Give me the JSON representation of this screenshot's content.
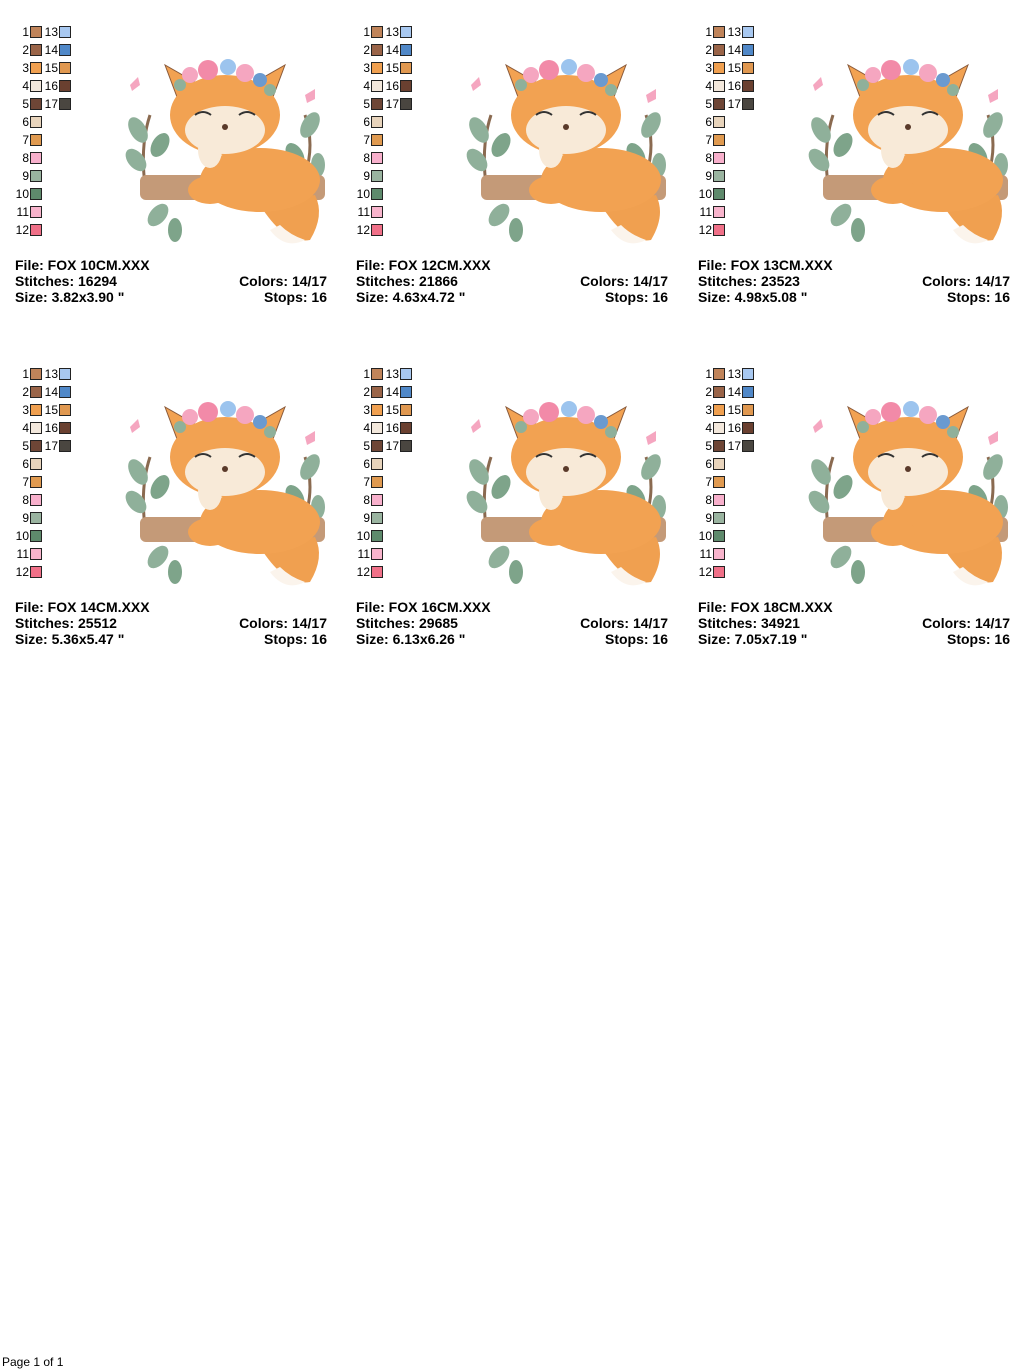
{
  "palette": {
    "numbers": [
      "1",
      "2",
      "3",
      "4",
      "5",
      "6",
      "7",
      "8",
      "9",
      "10",
      "11",
      "12",
      "13",
      "14",
      "15",
      "16",
      "17"
    ],
    "colors": [
      "#c0845a",
      "#9a6448",
      "#f0a050",
      "#f3e8dc",
      "#6e4636",
      "#e8d4bc",
      "#e09a50",
      "#f8b0cc",
      "#9ab4a0",
      "#5e8a6c",
      "#f8b4cc",
      "#f07088",
      "#a8c8f0",
      "#5088c8",
      "#e09850",
      "#6a4030",
      "#4a4640"
    ]
  },
  "designs": [
    {
      "file": "File: FOX 10CM.XXX",
      "stitches": "Stitches: 16294",
      "size": "Size: 3.82x3.90 \"",
      "colors": "Colors: 14/17",
      "stops": "Stops: 16"
    },
    {
      "file": "File: FOX 12CM.XXX",
      "stitches": "Stitches: 21866",
      "size": "Size: 4.63x4.72 \"",
      "colors": "Colors: 14/17",
      "stops": "Stops: 16"
    },
    {
      "file": "File: FOX 13CM.XXX",
      "stitches": "Stitches: 23523",
      "size": "Size: 4.98x5.08 \"",
      "colors": "Colors: 14/17",
      "stops": "Stops: 16"
    },
    {
      "file": "File: FOX 14CM.XXX",
      "stitches": "Stitches: 25512",
      "size": "Size: 5.36x5.47 \"",
      "colors": "Colors: 14/17",
      "stops": "Stops: 16"
    },
    {
      "file": "File: FOX 16CM.XXX",
      "stitches": "Stitches: 29685",
      "size": "Size: 6.13x6.26 \"",
      "colors": "Colors: 14/17",
      "stops": "Stops: 16"
    },
    {
      "file": "File: FOX 18CM.XXX",
      "stitches": "Stitches: 34921",
      "size": "Size: 7.05x7.19 \"",
      "colors": "Colors: 14/17",
      "stops": "Stops: 16"
    }
  ],
  "footer": "Page 1 of 1"
}
